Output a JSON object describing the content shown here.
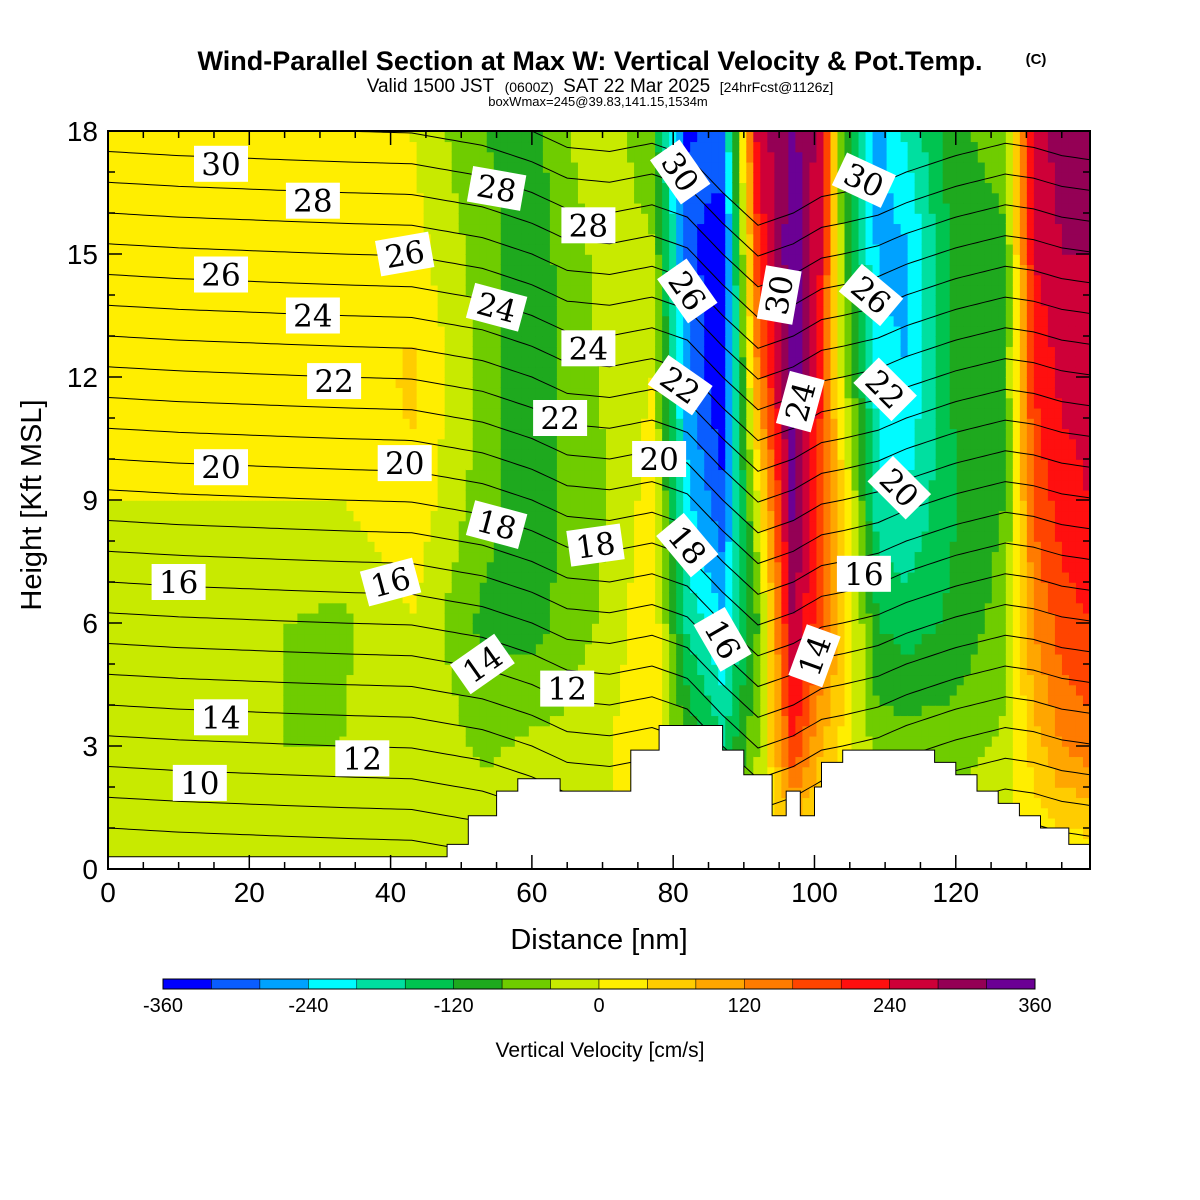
{
  "chart_data": {
    "type": "heatmap",
    "title": "Wind-Parallel Section at Max W: Vertical Velocity & Pot.Temp.",
    "title_mark": "(C)",
    "subtitle": {
      "part1": "Valid 1500 JST",
      "part2": "(0600Z)",
      "part3": "SAT 22 Mar 2025",
      "part4": "[24hrFcst@1126z]"
    },
    "boxline": "boxWmax=245@39.83,141.15,1534m",
    "xlabel": "Distance [nm]",
    "ylabel": "Height [Kft MSL]",
    "xlim": [
      0,
      139
    ],
    "ylim": [
      0,
      18
    ],
    "x_ticks": [
      0,
      20,
      40,
      60,
      80,
      100,
      120
    ],
    "x_tick_labels": [
      "0",
      "20",
      "40",
      "60",
      "80",
      "100",
      "120"
    ],
    "y_ticks": [
      0,
      3,
      6,
      9,
      12,
      15,
      18
    ],
    "y_tick_labels": [
      "0",
      "3",
      "6",
      "9",
      "12",
      "15",
      "18"
    ],
    "colorbar": {
      "title": "Vertical Velocity [cm/s]",
      "min": -360,
      "max": 360,
      "step": 40,
      "labels": [
        "-360",
        "-240",
        "-120",
        "0",
        "120",
        "240",
        "360"
      ],
      "label_values": [
        -360,
        -240,
        -120,
        0,
        120,
        240,
        360
      ],
      "colors": [
        "#0000ff",
        "#0a5dff",
        "#00a2ff",
        "#00fbff",
        "#00dfa0",
        "#00c450",
        "#1ea91e",
        "#6fcc00",
        "#c8ea00",
        "#ffee00",
        "#ffcc00",
        "#ffa600",
        "#ff7b00",
        "#ff4400",
        "#ff0f0f",
        "#ce0038",
        "#940055",
        "#6b0094"
      ]
    },
    "velocity_bands": [
      {
        "x": 0,
        "w": [
          0,
          0,
          0,
          0,
          0,
          0,
          0
        ]
      },
      {
        "x": 10,
        "w": [
          0,
          -40,
          -40,
          0,
          0,
          0,
          0
        ]
      },
      {
        "x": 25,
        "w": [
          0,
          -40,
          -40,
          0,
          0,
          0,
          0
        ]
      },
      {
        "x": 33,
        "w": [
          0,
          -40,
          -50,
          0,
          0,
          0,
          0
        ]
      },
      {
        "x": 43,
        "w": [
          0,
          0,
          0,
          30,
          50,
          20,
          0
        ]
      },
      {
        "x": 53,
        "w": [
          0,
          -50,
          -90,
          -60,
          -50,
          -60,
          -80
        ]
      },
      {
        "x": 60,
        "w": [
          0,
          -30,
          -100,
          -120,
          -120,
          -110,
          -100
        ]
      },
      {
        "x": 65,
        "w": [
          0,
          -30,
          -60,
          -70,
          -70,
          -60,
          -40
        ]
      },
      {
        "x": 71,
        "w": [
          0,
          0,
          -30,
          -40,
          -30,
          -20,
          -10
        ]
      },
      {
        "x": 77,
        "w": [
          0,
          40,
          40,
          20,
          0,
          -30,
          -80
        ]
      },
      {
        "x": 82,
        "w": [
          0,
          -80,
          -170,
          -230,
          -270,
          -300,
          -330
        ]
      },
      {
        "x": 87,
        "w": [
          0,
          -160,
          -240,
          -310,
          -360,
          -360,
          -280
        ]
      },
      {
        "x": 92,
        "w": [
          0,
          -40,
          -80,
          0,
          120,
          200,
          260
        ]
      },
      {
        "x": 97,
        "w": [
          0,
          200,
          290,
          340,
          360,
          360,
          330
        ]
      },
      {
        "x": 101,
        "w": [
          0,
          80,
          160,
          170,
          200,
          240,
          260
        ]
      },
      {
        "x": 104,
        "w": [
          0,
          30,
          60,
          50,
          -20,
          -60,
          -80
        ]
      },
      {
        "x": 109,
        "w": [
          0,
          -60,
          -120,
          -190,
          -220,
          -250,
          -260
        ]
      },
      {
        "x": 113,
        "w": [
          0,
          -60,
          -140,
          -200,
          -240,
          -250,
          -190
        ]
      },
      {
        "x": 120,
        "w": [
          0,
          -60,
          -110,
          -120,
          -110,
          -100,
          -90
        ]
      },
      {
        "x": 127,
        "w": [
          0,
          -30,
          -60,
          -80,
          -80,
          -90,
          -60
        ]
      },
      {
        "x": 131,
        "w": [
          0,
          60,
          120,
          170,
          200,
          240,
          260
        ]
      },
      {
        "x": 135,
        "w": [
          0,
          120,
          180,
          220,
          250,
          280,
          300
        ]
      },
      {
        "x": 139,
        "w": [
          0,
          140,
          200,
          240,
          260,
          280,
          300
        ]
      }
    ],
    "velocity_band_heights": [
      0,
      3,
      6,
      9,
      12,
      15,
      18
    ],
    "terrain": [
      [
        0,
        0.3
      ],
      [
        48,
        0.3
      ],
      [
        48,
        0.6
      ],
      [
        51,
        0.6
      ],
      [
        51,
        1.3
      ],
      [
        55,
        1.3
      ],
      [
        55,
        1.9
      ],
      [
        58,
        1.9
      ],
      [
        58,
        2.2
      ],
      [
        64,
        2.2
      ],
      [
        64,
        1.9
      ],
      [
        74,
        1.9
      ],
      [
        74,
        2.9
      ],
      [
        78,
        2.9
      ],
      [
        78,
        3.5
      ],
      [
        87,
        3.5
      ],
      [
        87,
        2.9
      ],
      [
        90,
        2.9
      ],
      [
        90,
        2.3
      ],
      [
        94,
        2.3
      ],
      [
        94,
        1.3
      ],
      [
        96,
        1.3
      ],
      [
        96,
        1.9
      ],
      [
        98,
        1.9
      ],
      [
        98,
        1.3
      ],
      [
        100,
        1.3
      ],
      [
        100,
        2.0
      ],
      [
        101,
        2.0
      ],
      [
        101,
        2.6
      ],
      [
        104,
        2.6
      ],
      [
        104,
        2.9
      ],
      [
        117,
        2.9
      ],
      [
        117,
        2.6
      ],
      [
        120,
        2.6
      ],
      [
        120,
        2.3
      ],
      [
        123,
        2.3
      ],
      [
        123,
        1.9
      ],
      [
        126,
        1.9
      ],
      [
        126,
        1.6
      ],
      [
        129,
        1.6
      ],
      [
        129,
        1.3
      ],
      [
        132,
        1.3
      ],
      [
        132,
        1.0
      ],
      [
        136,
        1.0
      ],
      [
        136,
        0.6
      ],
      [
        139,
        0.6
      ]
    ],
    "theta_contours": {
      "interval": 1,
      "min": 9,
      "max": 33,
      "label_values": [
        "10",
        "12",
        "14",
        "16",
        "18",
        "20",
        "22",
        "24",
        "26",
        "28",
        "30"
      ]
    },
    "contour_labels": [
      {
        "text": "30",
        "x": 16,
        "y": 17.2,
        "angle": 0
      },
      {
        "text": "28",
        "x": 29,
        "y": 16.3,
        "angle": 0
      },
      {
        "text": "26",
        "x": 16,
        "y": 14.5,
        "angle": 0
      },
      {
        "text": "24",
        "x": 29,
        "y": 13.5,
        "angle": 0
      },
      {
        "text": "22",
        "x": 32,
        "y": 11.9,
        "angle": 0
      },
      {
        "text": "20",
        "x": 16,
        "y": 9.8,
        "angle": 0
      },
      {
        "text": "16",
        "x": 10,
        "y": 7.0,
        "angle": 0
      },
      {
        "text": "14",
        "x": 16,
        "y": 3.7,
        "angle": 0
      },
      {
        "text": "12",
        "x": 36,
        "y": 2.7,
        "angle": 0
      },
      {
        "text": "10",
        "x": 13,
        "y": 2.1,
        "angle": 0
      },
      {
        "text": "26",
        "x": 42,
        "y": 15.0,
        "angle": -10
      },
      {
        "text": "20",
        "x": 42,
        "y": 9.9,
        "angle": 0
      },
      {
        "text": "16",
        "x": 40,
        "y": 7.0,
        "angle": -15
      },
      {
        "text": "14",
        "x": 53,
        "y": 5.0,
        "angle": -35
      },
      {
        "text": "28",
        "x": 55,
        "y": 16.6,
        "angle": 10
      },
      {
        "text": "24",
        "x": 55,
        "y": 13.7,
        "angle": 15
      },
      {
        "text": "18",
        "x": 55,
        "y": 8.4,
        "angle": 15
      },
      {
        "text": "22",
        "x": 64,
        "y": 11.0,
        "angle": 0
      },
      {
        "text": "24",
        "x": 68,
        "y": 12.7,
        "angle": 0
      },
      {
        "text": "28",
        "x": 68,
        "y": 15.7,
        "angle": 0
      },
      {
        "text": "18",
        "x": 69,
        "y": 7.9,
        "angle": -8
      },
      {
        "text": "12",
        "x": 65,
        "y": 4.4,
        "angle": 0
      },
      {
        "text": "30",
        "x": 81,
        "y": 17.0,
        "angle": 55
      },
      {
        "text": "26",
        "x": 82,
        "y": 14.1,
        "angle": 55
      },
      {
        "text": "22",
        "x": 81,
        "y": 11.8,
        "angle": 35
      },
      {
        "text": "20",
        "x": 78,
        "y": 10.0,
        "angle": 0
      },
      {
        "text": "18",
        "x": 82,
        "y": 7.9,
        "angle": 50
      },
      {
        "text": "16",
        "x": 87,
        "y": 5.6,
        "angle": 60
      },
      {
        "text": "30",
        "x": 95,
        "y": 14.0,
        "angle": -80
      },
      {
        "text": "24",
        "x": 98,
        "y": 11.4,
        "angle": -75
      },
      {
        "text": "14",
        "x": 100,
        "y": 5.2,
        "angle": -70
      },
      {
        "text": "30",
        "x": 107,
        "y": 16.8,
        "angle": 25
      },
      {
        "text": "26",
        "x": 108,
        "y": 14.0,
        "angle": 40
      },
      {
        "text": "22",
        "x": 110,
        "y": 11.7,
        "angle": 45
      },
      {
        "text": "20",
        "x": 112,
        "y": 9.3,
        "angle": 45
      },
      {
        "text": "16",
        "x": 107,
        "y": 7.2,
        "angle": 0
      }
    ]
  }
}
